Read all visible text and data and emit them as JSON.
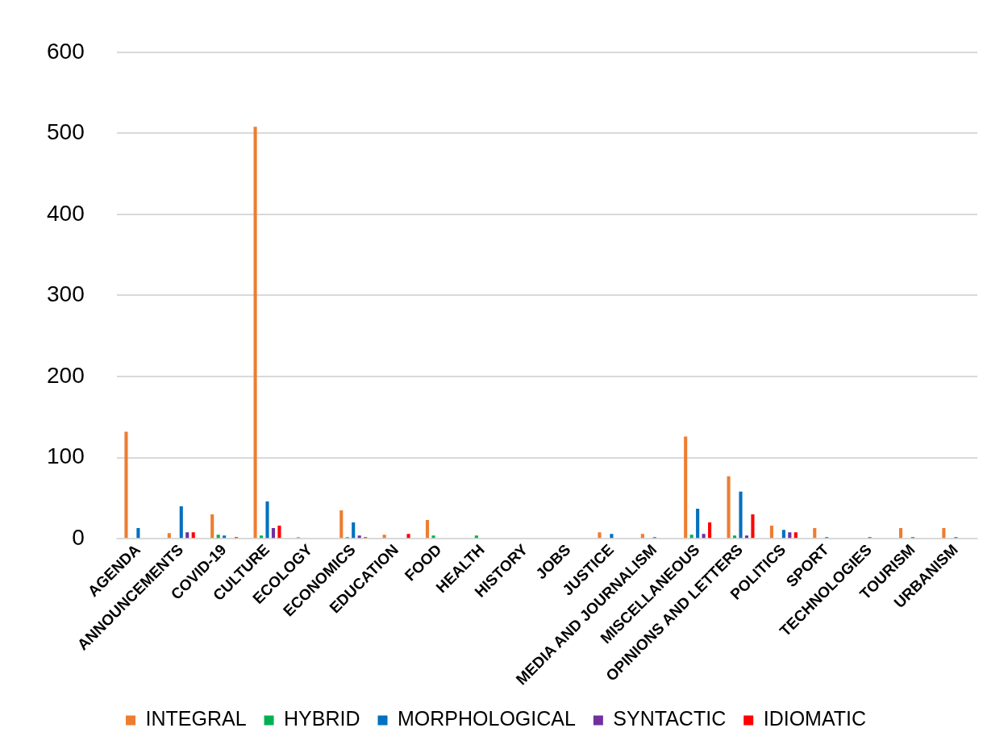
{
  "chart_data": {
    "type": "bar",
    "categories": [
      "AGENDA",
      "ANNOUNCEMENTS",
      "COVID-19",
      "CULTURE",
      "ECOLOGY",
      "ECONOMICS",
      "EDUCATION",
      "FOOD",
      "HEALTH",
      "HISTORY",
      "JOBS",
      "JUSTICE",
      "MEDIA AND JOURNALISM",
      "MISCELLANEOUS",
      "OPINIONS AND LETTERS",
      "POLITICS",
      "SPORT",
      "TECHNOLOGIES",
      "TOURISM",
      "URBANISM"
    ],
    "series": [
      {
        "name": "INTEGRAL",
        "color": "#ed7d31",
        "values": [
          132,
          7,
          30,
          508,
          2,
          35,
          5,
          23,
          1,
          0,
          0,
          8,
          6,
          126,
          77,
          16,
          13,
          1,
          13,
          13
        ]
      },
      {
        "name": "HYBRID",
        "color": "#00b050",
        "values": [
          1,
          0,
          5,
          4,
          0,
          2,
          0,
          4,
          4,
          0,
          0,
          0,
          0,
          5,
          4,
          0,
          0,
          1,
          1,
          0
        ]
      },
      {
        "name": "MORPHOLOGICAL",
        "color": "#0070c0",
        "values": [
          13,
          40,
          4,
          46,
          1,
          20,
          1,
          1,
          0,
          0,
          0,
          6,
          2,
          37,
          58,
          11,
          2,
          2,
          2,
          2
        ]
      },
      {
        "name": "SYNTACTIC",
        "color": "#7030a0",
        "values": [
          0,
          8,
          0,
          13,
          1,
          4,
          0,
          0,
          0,
          1,
          0,
          0,
          1,
          6,
          4,
          8,
          1,
          0,
          1,
          0
        ]
      },
      {
        "name": "IDIOMATIC",
        "color": "#ff0000",
        "values": [
          1,
          8,
          2,
          16,
          0,
          2,
          6,
          0,
          0,
          0,
          0,
          1,
          1,
          20,
          30,
          8,
          0,
          0,
          1,
          0
        ]
      }
    ],
    "ylim": [
      0,
      600
    ],
    "yticks": [
      0,
      100,
      200,
      300,
      400,
      500,
      600
    ],
    "grid": "y",
    "legend": "bottom"
  }
}
